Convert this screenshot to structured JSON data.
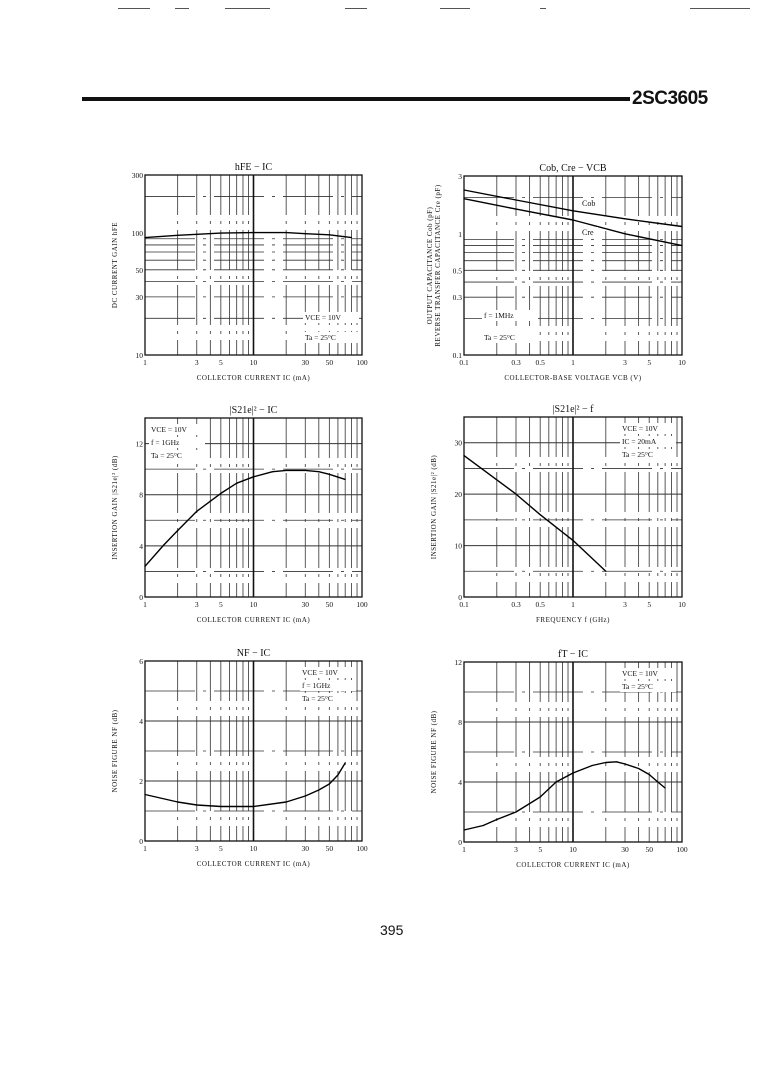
{
  "header": {
    "part_number": "2SC3605"
  },
  "footer": {
    "page_number": "395"
  },
  "chart_data": [
    {
      "type": "line",
      "title": "hFE − IC",
      "xlabel": "COLLECTOR CURRENT  IC  (mA)",
      "ylabel": "DC CURRENT GAIN  hFE",
      "xscale": "log",
      "yscale": "log",
      "xlim": [
        1,
        100
      ],
      "ylim": [
        10,
        300
      ],
      "xticks": [
        1,
        3,
        5,
        10,
        30,
        50,
        100
      ],
      "yticks": [
        10,
        30,
        50,
        100,
        300
      ],
      "grid": true,
      "annotations": [
        "VCE = 10V",
        "Ta = 25°C"
      ],
      "series": [
        {
          "x": [
            1,
            2,
            5,
            10,
            20,
            30,
            50,
            80
          ],
          "y": [
            92,
            96,
            100,
            101,
            101,
            99,
            97,
            92
          ]
        }
      ]
    },
    {
      "type": "line",
      "title": "Cob, Cre − VCB",
      "xlabel": "COLLECTOR-BASE VOLTAGE  VCB  (V)",
      "ylabel": "OUTPUT CAPACITANCE  Cob  (pF)",
      "ylabel2": "REVERSE TRANSFER CAPACITANCE  Cre  (pF)",
      "xscale": "log",
      "yscale": "log",
      "xlim": [
        0.1,
        10
      ],
      "ylim": [
        0.1,
        3
      ],
      "xticks": [
        0.1,
        0.3,
        0.5,
        1,
        3,
        5,
        10
      ],
      "yticks": [
        0.1,
        0.3,
        0.5,
        1,
        3
      ],
      "grid": true,
      "annotations": [
        "f = 1MHz",
        "Ta = 25°C"
      ],
      "series": [
        {
          "name": "Cob",
          "x": [
            0.1,
            0.3,
            1,
            3,
            10
          ],
          "y": [
            2.3,
            1.9,
            1.55,
            1.33,
            1.15
          ]
        },
        {
          "name": "Cre",
          "x": [
            0.1,
            0.3,
            1,
            3,
            10
          ],
          "y": [
            1.95,
            1.6,
            1.3,
            1.0,
            0.8
          ]
        }
      ]
    },
    {
      "type": "line",
      "title": "|S21e|² − IC",
      "xlabel": "COLLECTOR CURRENT  IC  (mA)",
      "ylabel": "INSERTION GAIN  |S21e|²  (dB)",
      "xscale": "log",
      "yscale": "linear",
      "xlim": [
        1,
        100
      ],
      "ylim": [
        0,
        14
      ],
      "xticks": [
        1,
        3,
        5,
        10,
        30,
        50,
        100
      ],
      "yticks": [
        0,
        4,
        8,
        12
      ],
      "grid": true,
      "annotations": [
        "VCE = 10V",
        "f = 1GHz",
        "Ta = 25°C"
      ],
      "series": [
        {
          "x": [
            1,
            1.5,
            2,
            3,
            5,
            7,
            10,
            15,
            20,
            30,
            40,
            50,
            70
          ],
          "y": [
            2.4,
            4.1,
            5.2,
            6.7,
            8.1,
            8.9,
            9.4,
            9.8,
            9.9,
            9.9,
            9.8,
            9.6,
            9.2
          ]
        }
      ]
    },
    {
      "type": "line",
      "title": "|S21e|² − f",
      "xlabel": "FREQUENCY  f  (GHz)",
      "ylabel": "INSERTION GAIN  |S21e|²  (dB)",
      "xscale": "log",
      "yscale": "linear",
      "xlim": [
        0.1,
        10
      ],
      "ylim": [
        0,
        35
      ],
      "xticks": [
        0.1,
        0.3,
        0.5,
        1,
        3,
        5,
        10
      ],
      "yticks": [
        0,
        10,
        20,
        30
      ],
      "grid": true,
      "annotations": [
        "VCE = 10V",
        "IC = 20mA",
        "Ta = 25°C"
      ],
      "series": [
        {
          "x": [
            0.1,
            0.3,
            0.5,
            1,
            2
          ],
          "y": [
            27.5,
            20,
            16,
            11,
            5
          ]
        }
      ]
    },
    {
      "type": "line",
      "title": "NF − IC",
      "xlabel": "COLLECTOR CURRENT  IC  (mA)",
      "ylabel": "NOISE FIGURE  NF  (dB)",
      "xscale": "log",
      "yscale": "linear",
      "xlim": [
        1,
        100
      ],
      "ylim": [
        0,
        6
      ],
      "xticks": [
        1,
        3,
        5,
        10,
        30,
        50,
        100
      ],
      "yticks": [
        0,
        2,
        4,
        6
      ],
      "grid": true,
      "annotations": [
        "VCE = 10V",
        "f = 1GHz",
        "Ta = 25°C"
      ],
      "series": [
        {
          "x": [
            1,
            2,
            3,
            5,
            10,
            20,
            30,
            40,
            50,
            60,
            70
          ],
          "y": [
            1.55,
            1.3,
            1.2,
            1.15,
            1.15,
            1.3,
            1.5,
            1.7,
            1.9,
            2.2,
            2.6
          ]
        }
      ]
    },
    {
      "type": "line",
      "title": "fT − IC",
      "xlabel": "COLLECTOR CURRENT  IC  (mA)",
      "ylabel": "NOISE FIGURE  NF  (dB)",
      "xscale": "log",
      "yscale": "linear",
      "xlim": [
        1,
        100
      ],
      "ylim": [
        0,
        12
      ],
      "xticks": [
        1,
        3,
        5,
        10,
        30,
        50,
        100
      ],
      "yticks": [
        0,
        4,
        8,
        12
      ],
      "grid": true,
      "annotations": [
        "VCE = 10V",
        "Ta = 25°C"
      ],
      "series": [
        {
          "x": [
            1,
            1.5,
            2,
            3,
            5,
            7,
            10,
            15,
            20,
            25,
            30,
            40,
            50,
            60,
            70
          ],
          "y": [
            0.8,
            1.1,
            1.5,
            2.0,
            3.0,
            4.0,
            4.6,
            5.1,
            5.3,
            5.35,
            5.2,
            4.9,
            4.5,
            4.0,
            3.6
          ]
        }
      ]
    }
  ]
}
